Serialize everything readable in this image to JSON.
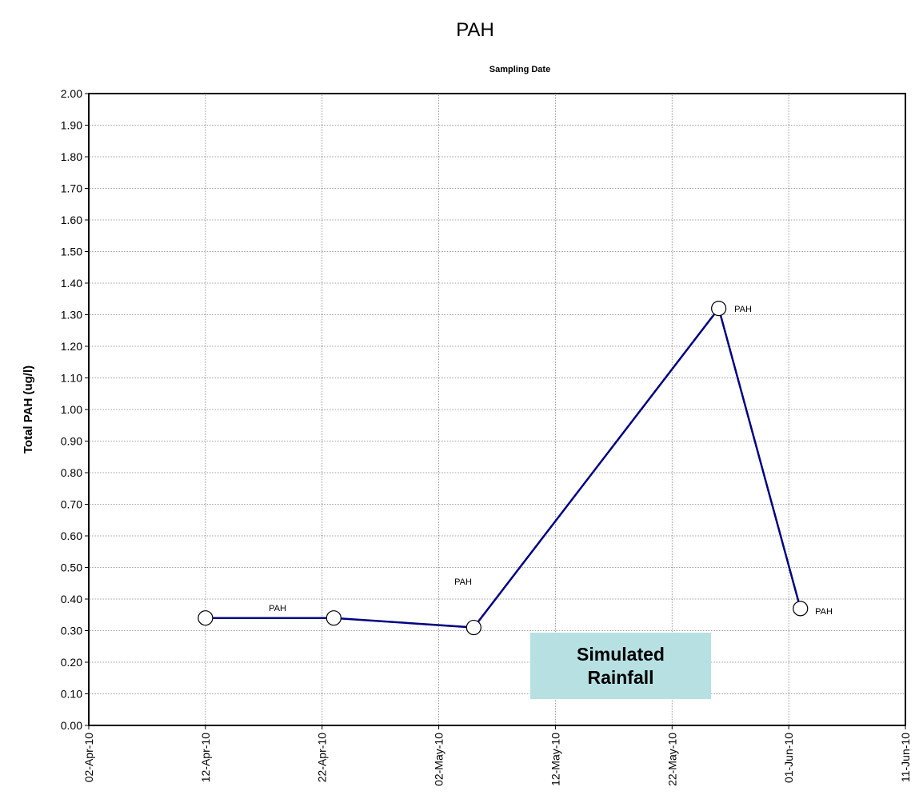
{
  "chart_data": {
    "type": "line",
    "title": "PAH",
    "xlabel": "Sampling Date",
    "ylabel": "Total PAH (ug/l)",
    "x": [
      "12-Apr-10",
      "23-Apr-10",
      "05-May-10",
      "26-May-10",
      "02-Jun-10"
    ],
    "series": [
      {
        "name": "PAH",
        "color": "#000080",
        "values": [
          0.34,
          0.34,
          0.31,
          1.32,
          0.37
        ]
      }
    ],
    "data_labels": [
      "PAH",
      "PAH",
      "PAH",
      "PAH"
    ],
    "annotation": "Simulated Rainfall",
    "xlim": [
      "02-Apr-10",
      "11-Jun-10"
    ],
    "xticks": [
      "02-Apr-10",
      "12-Apr-10",
      "22-Apr-10",
      "02-May-10",
      "12-May-10",
      "22-May-10",
      "01-Jun-10",
      "11-Jun-10"
    ],
    "ylim": [
      0,
      2
    ],
    "yticks": [
      {
        "value": 0,
        "label": "0.00"
      },
      {
        "value": 0.1,
        "label": "0.10"
      },
      {
        "value": 0.2,
        "label": "0.20"
      },
      {
        "value": 0.3,
        "label": "0.30"
      },
      {
        "value": 0.4,
        "label": "0.40"
      },
      {
        "value": 0.5,
        "label": "0.50"
      },
      {
        "value": 0.6,
        "label": "0.60"
      },
      {
        "value": 0.7,
        "label": "0.70"
      },
      {
        "value": 0.8,
        "label": "0.80"
      },
      {
        "value": 0.9,
        "label": "0.90"
      },
      {
        "value": 1,
        "label": "1.00"
      },
      {
        "value": 1.1,
        "label": "1.10"
      },
      {
        "value": 1.2,
        "label": "1.20"
      },
      {
        "value": 1.3,
        "label": "1.30"
      },
      {
        "value": 1.4,
        "label": "1.40"
      },
      {
        "value": 1.5,
        "label": "1.50"
      },
      {
        "value": 1.6,
        "label": "1.60"
      },
      {
        "value": 1.7,
        "label": "1.70"
      },
      {
        "value": 1.8,
        "label": "1.80"
      },
      {
        "value": 1.9,
        "label": "1.90"
      },
      {
        "value": 2,
        "label": "2.00"
      }
    ],
    "grid": true
  }
}
